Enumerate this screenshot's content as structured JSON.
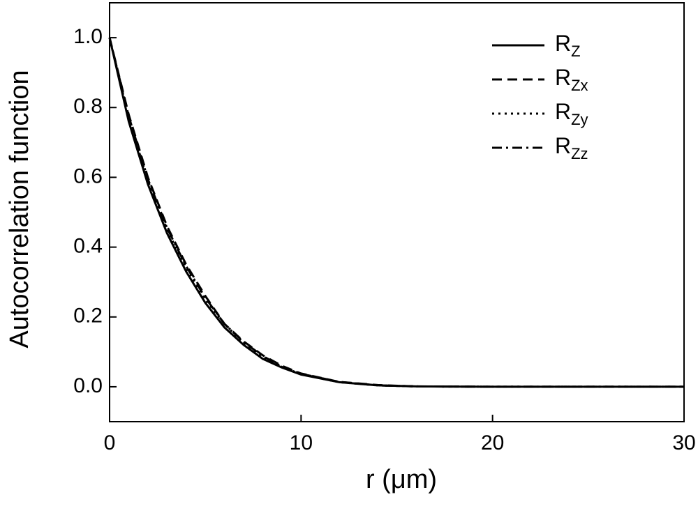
{
  "chart_data": {
    "type": "line",
    "x_label": "r (μm)",
    "y_label": "Autocorrelation function",
    "xlim": [
      0,
      30
    ],
    "xticks": [
      0,
      10,
      20,
      30
    ],
    "ylim": [
      -0.1,
      1.1
    ],
    "yticks": [
      {
        "value": 0,
        "label": "0.0"
      },
      0.2,
      0.4,
      0.6,
      0.8,
      {
        "value": 1,
        "label": "1.0"
      }
    ],
    "legend": "upper right",
    "x": [
      0,
      1,
      2,
      3,
      4,
      5,
      6,
      7,
      8,
      9,
      10,
      12,
      14,
      16,
      20,
      25,
      30
    ],
    "series": [
      {
        "name": "R",
        "name_subscript": "Z",
        "color": "#000000",
        "dash": "solid",
        "values": [
          1.0,
          0.76,
          0.58,
          0.44,
          0.33,
          0.24,
          0.17,
          0.12,
          0.08,
          0.055,
          0.035,
          0.013,
          0.004,
          0.001,
          0,
          0,
          0
        ]
      },
      {
        "name": "R",
        "name_subscript": "Zx",
        "color": "#000000",
        "dash": "dashed",
        "values": [
          1.0,
          0.78,
          0.6,
          0.46,
          0.35,
          0.26,
          0.18,
          0.13,
          0.09,
          0.06,
          0.038,
          0.014,
          0.005,
          0.001,
          0,
          0,
          0
        ]
      },
      {
        "name": "R",
        "name_subscript": "Zy",
        "color": "#000000",
        "dash": "dotted",
        "values": [
          1.0,
          0.77,
          0.59,
          0.45,
          0.34,
          0.25,
          0.18,
          0.125,
          0.085,
          0.057,
          0.036,
          0.013,
          0.004,
          0.001,
          0,
          0,
          0
        ]
      },
      {
        "name": "R",
        "name_subscript": "Zz",
        "color": "#000000",
        "dash": "dashdot",
        "values": [
          1.0,
          0.775,
          0.595,
          0.455,
          0.345,
          0.255,
          0.18,
          0.128,
          0.088,
          0.058,
          0.037,
          0.014,
          0.004,
          0.001,
          0,
          0,
          0
        ]
      }
    ]
  }
}
